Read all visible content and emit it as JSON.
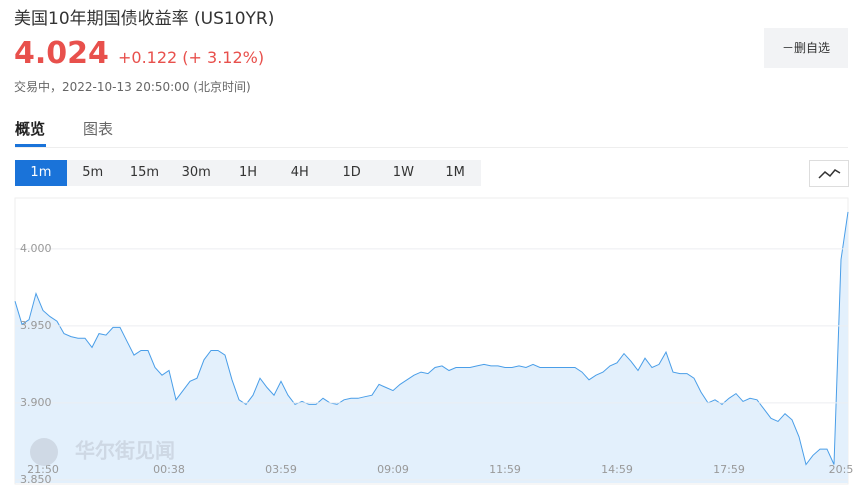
{
  "header": {
    "title": "美国10年期国债收益率 (US10YR)",
    "price": "4.024",
    "change": "+0.122 (+ 3.12%)",
    "status": "交易中，2022-10-13 20:50:00 (北京时间)",
    "watchlist_button": "－删自选"
  },
  "tabs": [
    "概览",
    "图表"
  ],
  "intervals": [
    "1m",
    "5m",
    "15m",
    "30m",
    "1H",
    "4H",
    "1D",
    "1W",
    "1M"
  ],
  "watermark": "华尔街见闻",
  "chart_data": {
    "type": "area",
    "color": "#4a9ee8",
    "area_color": "#e3f0fc",
    "grid": true,
    "categories": [
      null,
      null,
      null,
      null,
      "21:50",
      null,
      null,
      null,
      null,
      null,
      null,
      null,
      null,
      null,
      null,
      null,
      null,
      null,
      null,
      null,
      null,
      null,
      "00:38",
      null,
      null,
      null,
      null,
      null,
      null,
      null,
      null,
      null,
      null,
      null,
      null,
      null,
      null,
      null,
      "03:59",
      null,
      null,
      null,
      null,
      null,
      null,
      null,
      null,
      null,
      null,
      null,
      null,
      null,
      null,
      null,
      "09:09",
      null,
      null,
      null,
      null,
      null,
      null,
      null,
      null,
      null,
      null,
      null,
      null,
      null,
      null,
      null,
      "11:59",
      null,
      null,
      null,
      null,
      null,
      null,
      null,
      null,
      null,
      null,
      null,
      null,
      null,
      null,
      null,
      "14:59",
      null,
      null,
      null,
      null,
      null,
      null,
      null,
      null,
      null,
      null,
      null,
      null,
      null,
      null,
      null,
      "17:59",
      null,
      null,
      null,
      null,
      null,
      null,
      null,
      null,
      null,
      null,
      null,
      null,
      null,
      null,
      null,
      "20:5",
      null
    ],
    "values": [
      3.966,
      3.951,
      3.954,
      3.971,
      3.96,
      3.956,
      3.953,
      3.945,
      3.943,
      3.942,
      3.942,
      3.936,
      3.945,
      3.944,
      3.949,
      3.949,
      3.94,
      3.931,
      3.934,
      3.934,
      3.923,
      3.918,
      3.921,
      3.902,
      3.908,
      3.914,
      3.916,
      3.928,
      3.934,
      3.934,
      3.931,
      3.915,
      3.902,
      3.899,
      3.905,
      3.916,
      3.91,
      3.905,
      3.914,
      3.905,
      3.899,
      3.901,
      3.899,
      3.899,
      3.903,
      3.9,
      3.899,
      3.902,
      3.903,
      3.903,
      3.904,
      3.905,
      3.912,
      3.91,
      3.908,
      3.912,
      3.915,
      3.918,
      3.92,
      3.919,
      3.923,
      3.924,
      3.921,
      3.923,
      3.923,
      3.923,
      3.924,
      3.925,
      3.924,
      3.924,
      3.923,
      3.923,
      3.924,
      3.923,
      3.925,
      3.923,
      3.923,
      3.923,
      3.923,
      3.923,
      3.923,
      3.92,
      3.915,
      3.918,
      3.92,
      3.924,
      3.926,
      3.932,
      3.927,
      3.921,
      3.929,
      3.923,
      3.925,
      3.933,
      3.92,
      3.919,
      3.919,
      3.916,
      3.907,
      3.9,
      3.902,
      3.899,
      3.903,
      3.906,
      3.901,
      3.903,
      3.902,
      3.896,
      3.89,
      3.888,
      3.893,
      3.889,
      3.878,
      3.86,
      3.866,
      3.87,
      3.87,
      3.86,
      3.993,
      4.024
    ],
    "ylim": [
      3.848,
      4.033
    ],
    "yticks": [
      {
        "value": 3.85,
        "label": "3.850"
      },
      {
        "value": 3.9,
        "label": "3.900"
      },
      {
        "value": 3.95,
        "label": "3.950"
      },
      {
        "value": 4,
        "label": "4.000"
      }
    ]
  }
}
